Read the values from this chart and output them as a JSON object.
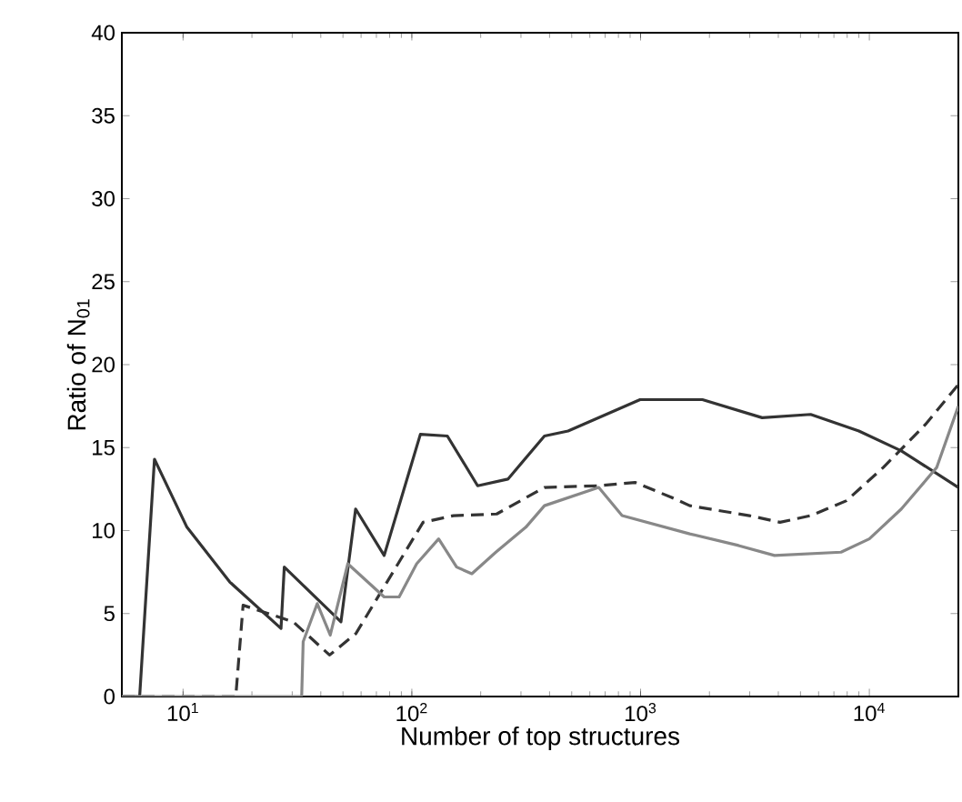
{
  "chart_data": {
    "type": "line",
    "xlabel": "Number of top structures",
    "ylabel": "Ratio of N$_{01}$",
    "log": "x",
    "grid": false,
    "marker": "none",
    "xlim": [
      5.4,
      24500
    ],
    "ylim": [
      0,
      40
    ],
    "xticks": [
      {
        "value": 10,
        "label": "10$^{1}$"
      },
      {
        "value": 100,
        "label": "10$^{2}$"
      },
      {
        "value": 1000,
        "label": "10$^{3}$"
      },
      {
        "value": 10000,
        "label": "10$^{4}$"
      }
    ],
    "yticks": [
      0,
      5,
      10,
      15,
      20,
      25,
      30,
      35,
      40
    ],
    "series": [
      {
        "color": "#333333",
        "line_style": "solid",
        "x": [
          5.4,
          6.46,
          7.5,
          10.4,
          16,
          26.8,
          27.7,
          49,
          56.8,
          75.7,
          109,
          143,
          194,
          263,
          380,
          482,
          1000,
          1850,
          3400,
          5540,
          9000,
          13800,
          24500
        ],
        "values": [
          0,
          0,
          14.3,
          10.2,
          6.9,
          4.1,
          7.8,
          4.5,
          11.3,
          8.5,
          15.8,
          15.7,
          12.7,
          13.1,
          15.7,
          16.0,
          17.9,
          17.9,
          16.8,
          17.0,
          16.0,
          14.8,
          12.6
        ]
      },
      {
        "color": "#333333",
        "line_style": "dashed",
        "x": [
          5.4,
          17,
          18.3,
          30.3,
          43.7,
          57,
          112,
          152,
          235,
          380,
          656,
          946,
          1365,
          1640,
          2990,
          4070,
          5540,
          7950,
          11500,
          17600,
          24500
        ],
        "values": [
          0,
          0,
          5.5,
          4.5,
          2.5,
          3.8,
          10.5,
          10.9,
          11.0,
          12.6,
          12.7,
          12.9,
          12.0,
          11.5,
          10.9,
          10.5,
          10.9,
          11.8,
          13.8,
          16.4,
          18.8
        ]
      },
      {
        "color": "#888888",
        "line_style": "solid",
        "x": [
          5.4,
          33,
          33.5,
          38.6,
          44,
          52.5,
          75.7,
          88,
          105,
          131,
          157,
          183,
          233,
          315,
          380,
          656,
          830,
          1640,
          2680,
          3850,
          7520,
          10000,
          13800,
          19700,
          24500
        ],
        "values": [
          0,
          0,
          3.3,
          5.6,
          3.7,
          8.0,
          6.0,
          6.0,
          8.0,
          9.5,
          7.8,
          7.4,
          8.7,
          10.2,
          11.5,
          12.6,
          10.9,
          9.8,
          9.1,
          8.5,
          8.7,
          9.5,
          11.3,
          13.8,
          17.5
        ]
      }
    ]
  }
}
